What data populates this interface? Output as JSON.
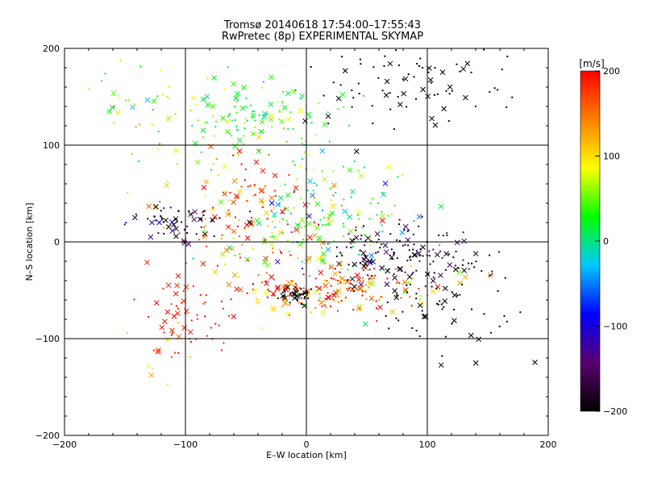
{
  "chart_data": {
    "type": "scatter",
    "title": "Tromsø 20140618  17:54:00–17:55:43",
    "subtitle": "RwPretec (8p) EXPERIMENTAL SKYMAP",
    "xlabel": "E–W location [km]",
    "ylabel": "N–S location [km]",
    "xlim": [
      -200,
      200
    ],
    "ylim": [
      -200,
      200
    ],
    "x_ticks": [
      "−200",
      "−100",
      "0",
      "100",
      "200"
    ],
    "y_ticks": [
      "−200",
      "−100",
      "0",
      "100",
      "200"
    ],
    "grid": true,
    "colorbar": {
      "label": "[m/s]",
      "range": [
        -200,
        200
      ],
      "ticks": [
        "200",
        "100",
        "0",
        "−100",
        "−200"
      ],
      "colormap": [
        "#000000",
        "#5a006e",
        "#0000ff",
        "#00c8ff",
        "#00ff00",
        "#ffff00",
        "#ff8000",
        "#ff0000"
      ]
    },
    "markers": [
      "dot",
      "x"
    ],
    "clusters": [
      {
        "center": [
          90,
          165
        ],
        "spread": [
          45,
          25
        ],
        "velocity": -200,
        "vel_spread": 5,
        "n": 90
      },
      {
        "center": [
          -40,
          130
        ],
        "spread": [
          35,
          22
        ],
        "velocity": 30,
        "vel_spread": 30,
        "n": 120
      },
      {
        "center": [
          -130,
          140
        ],
        "spread": [
          25,
          30
        ],
        "velocity": 70,
        "vel_spread": 40,
        "n": 40
      },
      {
        "center": [
          20,
          20
        ],
        "spread": [
          35,
          40
        ],
        "velocity": 20,
        "vel_spread": 50,
        "n": 180
      },
      {
        "center": [
          -40,
          25
        ],
        "spread": [
          40,
          30
        ],
        "velocity": 150,
        "vel_spread": 60,
        "n": 160
      },
      {
        "center": [
          -110,
          20
        ],
        "spread": [
          25,
          10
        ],
        "velocity": -170,
        "vel_spread": 40,
        "n": 60
      },
      {
        "center": [
          80,
          -15
        ],
        "spread": [
          30,
          15
        ],
        "velocity": -180,
        "vel_spread": 30,
        "n": 150
      },
      {
        "center": [
          20,
          -50
        ],
        "spread": [
          40,
          12
        ],
        "velocity": 160,
        "vel_spread": 60,
        "n": 200
      },
      {
        "center": [
          -10,
          -55
        ],
        "spread": [
          8,
          6
        ],
        "velocity": -200,
        "vel_spread": 5,
        "n": 40
      },
      {
        "center": [
          -100,
          -70
        ],
        "spread": [
          20,
          25
        ],
        "velocity": 190,
        "vel_spread": 10,
        "n": 60
      },
      {
        "center": [
          120,
          -60
        ],
        "spread": [
          40,
          30
        ],
        "velocity": -200,
        "vel_spread": 5,
        "n": 70
      },
      {
        "center": [
          -130,
          -130
        ],
        "spread": [
          20,
          25
        ],
        "velocity": 120,
        "vel_spread": 30,
        "n": 10
      }
    ]
  }
}
